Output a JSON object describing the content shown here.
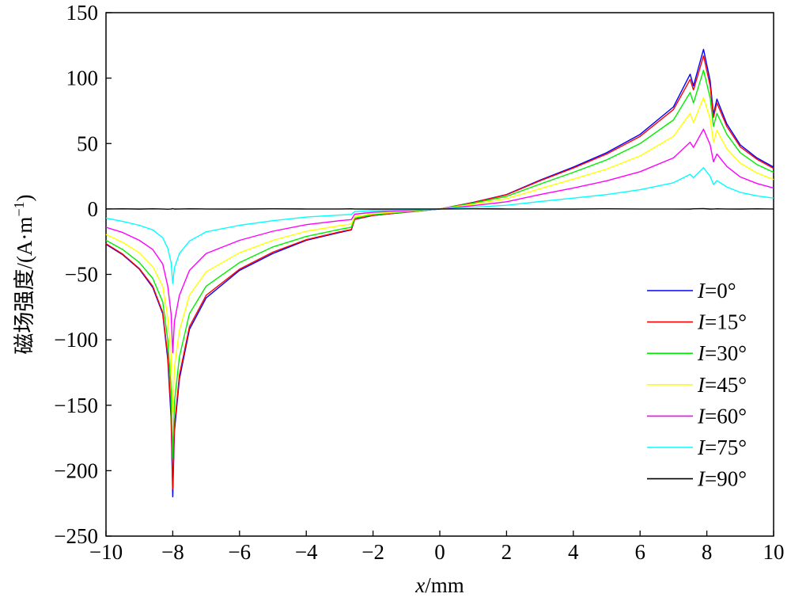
{
  "chart_data": {
    "type": "line",
    "xlabel": "x/mm",
    "xlabel_var": "x",
    "xlabel_unit": "/mm",
    "ylabel": "磁场强度/(A·m⁻¹)",
    "ylabel_main": "磁场强度/(A·m",
    "ylabel_exp": "−1",
    "ylabel_close": ")",
    "xlim": [
      -10,
      10
    ],
    "ylim": [
      -250,
      150
    ],
    "xticks": [
      -10,
      -8,
      -6,
      -4,
      -2,
      0,
      2,
      4,
      6,
      8,
      10
    ],
    "yticks": [
      -250,
      -200,
      -150,
      -100,
      -50,
      0,
      50,
      100,
      150
    ],
    "xtick_labels": [
      "−10",
      "−8",
      "−6",
      "−4",
      "−2",
      "0",
      "2",
      "4",
      "6",
      "8",
      "10"
    ],
    "ytick_labels": [
      "−250",
      "−200",
      "−150",
      "−100",
      "−50",
      "0",
      "50",
      "100",
      "150"
    ],
    "grid": false,
    "legend_position": "bottom-right",
    "x": [
      -10,
      -9.5,
      -9,
      -8.6,
      -8.3,
      -8.15,
      -8.05,
      -8.0,
      -7.95,
      -7.8,
      -7.5,
      -7,
      -6,
      -5,
      -4,
      -3,
      -2.65,
      -2.55,
      -2,
      -1,
      0,
      1,
      2,
      3,
      4,
      5,
      6,
      7,
      7.5,
      7.6,
      7.9,
      8.1,
      8.2,
      8.3,
      8.6,
      9,
      9.5,
      10
    ],
    "series": [
      {
        "name": "I=0°",
        "label_var": "I",
        "label_rest": "=0°",
        "color": "#0000ff",
        "values": [
          -27,
          -35,
          -46,
          -60,
          -80,
          -115,
          -160,
          -220,
          -170,
          -130,
          -92,
          -68,
          -47,
          -34,
          -24,
          -18,
          -16,
          -8,
          -5,
          -2.5,
          0,
          5,
          11,
          22,
          32,
          43,
          57,
          78,
          103,
          94,
          122,
          98,
          72,
          84,
          65,
          49,
          39,
          32
        ]
      },
      {
        "name": "I=15°",
        "label_var": "I",
        "label_rest": "=15°",
        "color": "#ff0000",
        "values": [
          -26.5,
          -34.5,
          -45.5,
          -59,
          -79,
          -112,
          -155,
          -214,
          -166,
          -127,
          -90,
          -66,
          -46,
          -33,
          -23.5,
          -17.5,
          -15.7,
          -7.8,
          -4.9,
          -2.4,
          0,
          4.9,
          10.8,
          21.5,
          31.3,
          42,
          55.5,
          76,
          99,
          91,
          117,
          94,
          70,
          81,
          63,
          47.5,
          38,
          31
        ]
      },
      {
        "name": "I=30°",
        "label_var": "I",
        "label_rest": "=30°",
        "color": "#00ee00",
        "values": [
          -24,
          -31,
          -41,
          -53,
          -71,
          -100,
          -138,
          -190,
          -148,
          -113,
          -80,
          -59,
          -41,
          -29,
          -21,
          -15.6,
          -14,
          -7,
          -4.4,
          -2.2,
          0,
          4.4,
          9.6,
          19,
          28,
          37.5,
          50,
          68,
          89,
          81,
          106,
          85,
          63,
          73,
          57,
          43,
          34,
          28
        ]
      },
      {
        "name": "I=45°",
        "label_var": "I",
        "label_rest": "=45°",
        "color": "#ffff00",
        "values": [
          -19.5,
          -25.5,
          -33.5,
          -44,
          -59,
          -83,
          -113,
          -155,
          -121,
          -93,
          -66,
          -48,
          -33.5,
          -24,
          -17,
          -12.8,
          -11.5,
          -5.7,
          -3.6,
          -1.8,
          0,
          3.6,
          7.8,
          15.5,
          22.8,
          30.5,
          40.5,
          55.5,
          73,
          66,
          85,
          69,
          51,
          60,
          46,
          35,
          27.5,
          22.5
        ]
      },
      {
        "name": "I=60°",
        "label_var": "I",
        "label_rest": "=60°",
        "color": "#ff00ff",
        "values": [
          -14,
          -18,
          -24,
          -31,
          -42,
          -59,
          -80,
          -110,
          -86,
          -66,
          -47,
          -34,
          -24,
          -17,
          -12,
          -9,
          -8.1,
          -4,
          -2.5,
          -1.3,
          0,
          2.5,
          5.5,
          11,
          16,
          21.5,
          28.5,
          39,
          51,
          47,
          61,
          49,
          36,
          42,
          32.5,
          24.5,
          19.5,
          16
        ]
      },
      {
        "name": "I=75°",
        "label_var": "I",
        "label_rest": "=75°",
        "color": "#00ffff",
        "values": [
          -7,
          -9.5,
          -12.5,
          -16,
          -22,
          -30,
          -41,
          -57,
          -45,
          -34,
          -24.5,
          -17.5,
          -12.5,
          -9,
          -6.2,
          -4.7,
          -4.2,
          -2.1,
          -1.3,
          -0.7,
          0,
          1.3,
          2.8,
          5.7,
          8.3,
          11,
          14.7,
          20,
          26.5,
          24,
          31.5,
          25,
          18.7,
          21.7,
          16.8,
          12.7,
          10,
          8.3
        ]
      },
      {
        "name": "I=90°",
        "label_var": "I",
        "label_rest": "=90°",
        "color": "#000000",
        "values": [
          0,
          0.1,
          -0.1,
          0.1,
          0,
          -0.2,
          0,
          0.2,
          -0.1,
          0,
          0.1,
          0,
          -0.1,
          0.1,
          0,
          0,
          0.1,
          0,
          -0.1,
          0,
          0,
          0.1,
          0,
          0,
          -0.1,
          0.1,
          0,
          0,
          -0.1,
          0.1,
          0.2,
          -0.1,
          0,
          0.1,
          0,
          -0.1,
          0.1,
          0
        ]
      }
    ]
  }
}
